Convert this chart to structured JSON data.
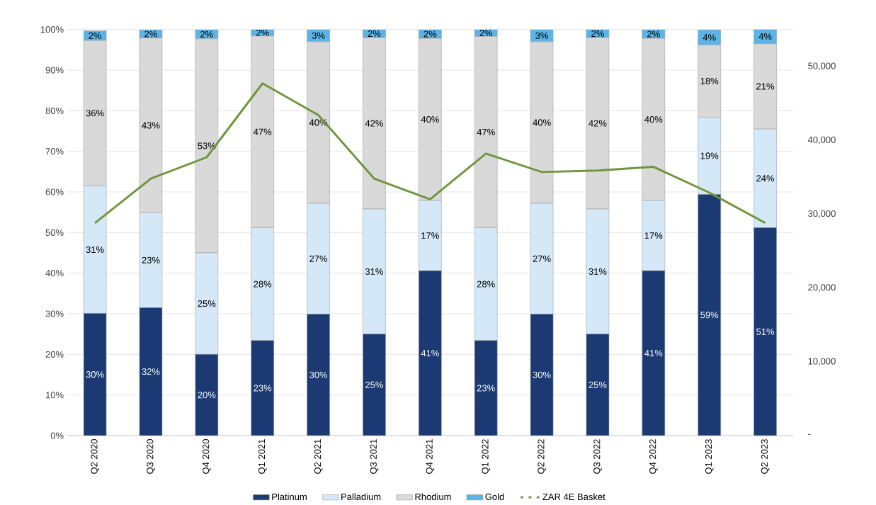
{
  "chart_data": {
    "type": "bar",
    "stacked": true,
    "categories": [
      "Q2 2020",
      "Q3 2020",
      "Q4 2020",
      "Q1 2021",
      "Q2 2021",
      "Q3 2021",
      "Q4 2021",
      "Q1 2022",
      "Q2 2022",
      "Q3 2022",
      "Q4 2022",
      "Q1 2023",
      "Q2 2023"
    ],
    "series": [
      {
        "name": "Platinum",
        "color": "#1b3a73",
        "values": [
          30.1,
          31.5,
          20,
          23.4,
          29.9,
          25,
          40.6,
          23.4,
          29.9,
          25,
          40.6,
          59.4,
          51.2
        ],
        "value_labels": [
          "30%",
          "32%",
          "20%",
          "23%",
          "30%",
          "25%",
          "41%",
          "23%",
          "30%",
          "25%",
          "41%",
          "59%",
          "51%"
        ]
      },
      {
        "name": "Palladium",
        "color": "#d4e8f8",
        "values": [
          31.4,
          23.4,
          25,
          27.8,
          27.3,
          30.8,
          17.3,
          27.8,
          27.3,
          30.8,
          17.3,
          19,
          24.3
        ],
        "value_labels": [
          "31%",
          "23%",
          "25%",
          "28%",
          "27%",
          "31%",
          "17%",
          "28%",
          "27%",
          "31%",
          "17%",
          "19%",
          "24%"
        ]
      },
      {
        "name": "Rhodium",
        "color": "#d9d9d9",
        "values": [
          35.8,
          43,
          52.7,
          47.2,
          39.8,
          42.2,
          39.9,
          47.1,
          39.8,
          42.2,
          39.9,
          17.8,
          21
        ],
        "value_labels": [
          "36%",
          "43%",
          "53%",
          "47%",
          "40%",
          "42%",
          "40%",
          "47%",
          "40%",
          "42%",
          "40%",
          "18%",
          "21%"
        ]
      },
      {
        "name": "Gold",
        "color": "#5bb4e5",
        "values": [
          2.4,
          2,
          2.3,
          1.6,
          3,
          2,
          2.2,
          1.7,
          3,
          2,
          2.2,
          3.7,
          3.6
        ],
        "value_labels": [
          "2%",
          "2%",
          "2%",
          "2%",
          "3%",
          "2%",
          "2%",
          "2%",
          "3%",
          "2%",
          "2%",
          "4%",
          "4%"
        ]
      },
      {
        "name": "ZAR 4E Basket",
        "type": "line",
        "axis": "y2",
        "color": "#70963c",
        "values": [
          28800,
          34800,
          37700,
          47700,
          43400,
          34800,
          32000,
          38200,
          35700,
          35900,
          36400,
          32900,
          28800
        ]
      }
    ],
    "ylim": [
      0,
      100
    ],
    "yticks": [
      {
        "value": 0,
        "label": "0%"
      },
      {
        "value": 10,
        "label": "10%"
      },
      {
        "value": 20,
        "label": "20%"
      },
      {
        "value": 30,
        "label": "30%"
      },
      {
        "value": 40,
        "label": "40%"
      },
      {
        "value": 50,
        "label": "50%"
      },
      {
        "value": 60,
        "label": "60%"
      },
      {
        "value": 70,
        "label": "70%"
      },
      {
        "value": 80,
        "label": "80%"
      },
      {
        "value": 90,
        "label": "90%"
      },
      {
        "value": 100,
        "label": "100%"
      }
    ],
    "y2lim": [
      0,
      55000
    ],
    "y2ticks": [
      {
        "value": 0,
        "label": "-"
      },
      {
        "value": 10000,
        "label": "10,000"
      },
      {
        "value": 20000,
        "label": "20,000"
      },
      {
        "value": 30000,
        "label": "30,000"
      },
      {
        "value": 40000,
        "label": "40,000"
      },
      {
        "value": 50000,
        "label": "50,000"
      }
    ],
    "grid": "y",
    "legend": "bottom"
  }
}
